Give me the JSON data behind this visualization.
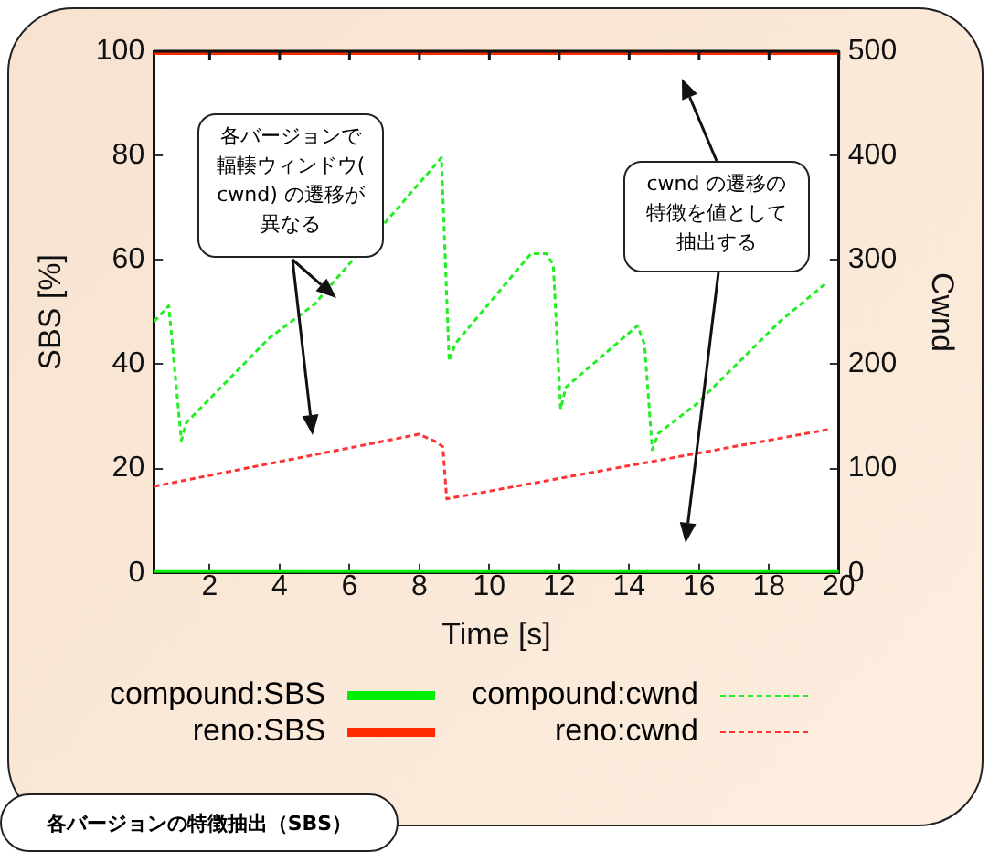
{
  "chart_data": {
    "type": "line",
    "xlabel": "Time [s]",
    "ylabel": "SBS [%]",
    "y2label": "Cwnd",
    "xlim": [
      0.4,
      20
    ],
    "xticks": [
      2,
      4,
      6,
      8,
      10,
      12,
      14,
      16,
      18,
      20
    ],
    "ylim": [
      0,
      100
    ],
    "yticks": [
      0,
      20,
      40,
      60,
      80,
      100
    ],
    "y2lim": [
      0,
      500
    ],
    "y2ticks": [
      0,
      100,
      200,
      300,
      400,
      500
    ],
    "grid": false,
    "legend": "bottom",
    "marker": "none",
    "series": [
      {
        "name": "compound:SBS",
        "color": "#00ee00",
        "line_style": "solid",
        "x": [
          0.4,
          20
        ],
        "values": [
          0,
          0
        ]
      },
      {
        "name": "reno:SBS",
        "color": "#ff2a00",
        "line_style": "solid",
        "x": [
          0.4,
          20
        ],
        "values": [
          100,
          100
        ]
      },
      {
        "name": "compound:cwnd",
        "color": "#22ee22",
        "line_style": "dashed",
        "axis": "y2",
        "x": [
          0.41,
          0.83,
          1.19,
          1.33,
          3.7,
          4.98,
          8.63,
          8.85,
          9.03,
          11.19,
          11.64,
          11.83,
          12.04,
          12.19,
          14.24,
          14.44,
          14.66,
          14.84,
          15.93,
          18.31,
          19.68
        ],
        "values": [
          241,
          256,
          127,
          144,
          225,
          257,
          398,
          203,
          220,
          306,
          306,
          295,
          157,
          178,
          237,
          219,
          118,
          134,
          162,
          241,
          279
        ]
      },
      {
        "name": "reno:cwnd",
        "color": "#ff3333",
        "line_style": "dashed",
        "axis": "y2",
        "x": [
          0.41,
          7.99,
          8.45,
          8.67,
          8.78,
          19.77
        ],
        "values": [
          83,
          133,
          126,
          121,
          71,
          138
        ]
      }
    ],
    "annotations": [
      "各バージョンで輻輳ウィンドウ(cwnd) の遷移が異なる",
      "cwnd の遷移の特徴を値として抽出する",
      "各バージョンの特徴抽出（SBS）"
    ]
  }
}
